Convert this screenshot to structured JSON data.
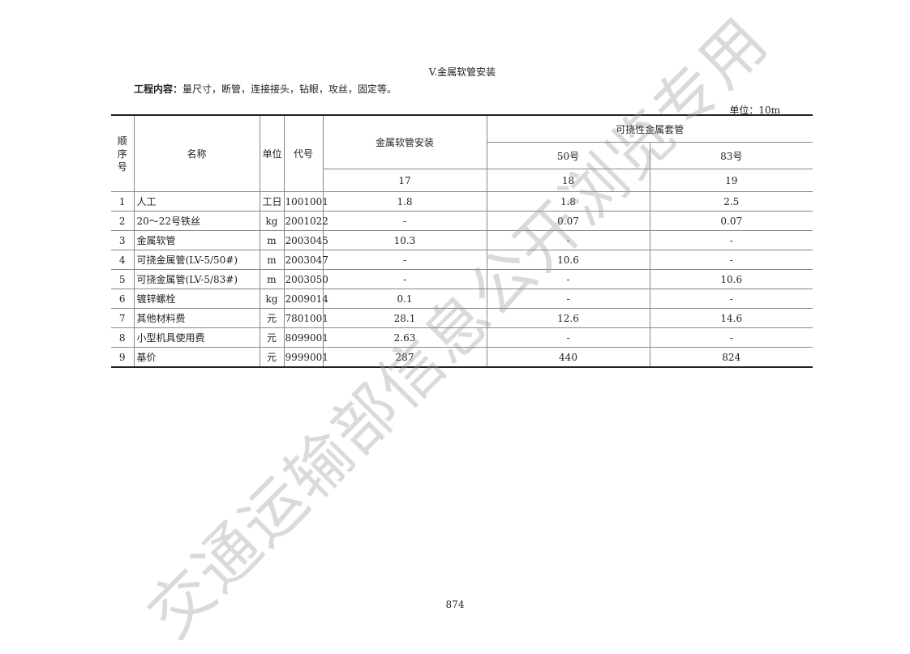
{
  "title": "V.金属软管安装",
  "work_content_label": "工程内容：",
  "work_content": "量尺寸，断管，连接接头，钻眼，攻丝，固定等。",
  "unit": "单位：10m",
  "headers": {
    "seq": "顺序号",
    "name": "名称",
    "unit": "单位",
    "code": "代号",
    "col1": "金属软管安装",
    "group": "可挠性金属套管",
    "col2": "50号",
    "col3": "83号",
    "num1": "17",
    "num2": "18",
    "num3": "19"
  },
  "rows": [
    {
      "seq": "1",
      "name": "人工",
      "unit": "工日",
      "code": "1001001",
      "v1": "1.8",
      "v2": "1.8",
      "v3": "2.5"
    },
    {
      "seq": "2",
      "name": "20～22号铁丝",
      "unit": "kg",
      "code": "2001022",
      "v1": "-",
      "v2": "0.07",
      "v3": "0.07"
    },
    {
      "seq": "3",
      "name": "金属软管",
      "unit": "m",
      "code": "2003045",
      "v1": "10.3",
      "v2": "-",
      "v3": "-"
    },
    {
      "seq": "4",
      "name": "可挠金属管(LV-5/50#)",
      "unit": "m",
      "code": "2003047",
      "v1": "-",
      "v2": "10.6",
      "v3": "-"
    },
    {
      "seq": "5",
      "name": "可挠金属管(LV-5/83#)",
      "unit": "m",
      "code": "2003050",
      "v1": "-",
      "v2": "-",
      "v3": "10.6"
    },
    {
      "seq": "6",
      "name": "镀锌螺栓",
      "unit": "kg",
      "code": "2009014",
      "v1": "0.1",
      "v2": "-",
      "v3": "-"
    },
    {
      "seq": "7",
      "name": "其他材料费",
      "unit": "元",
      "code": "7801001",
      "v1": "28.1",
      "v2": "12.6",
      "v3": "14.6"
    },
    {
      "seq": "8",
      "name": "小型机具使用费",
      "unit": "元",
      "code": "8099001",
      "v1": "2.63",
      "v2": "-",
      "v3": "-"
    },
    {
      "seq": "9",
      "name": "基价",
      "unit": "元",
      "code": "9999001",
      "v1": "287",
      "v2": "440",
      "v3": "824"
    }
  ],
  "page_number": "874",
  "watermark": "交通运输部信息公开浏览专用"
}
